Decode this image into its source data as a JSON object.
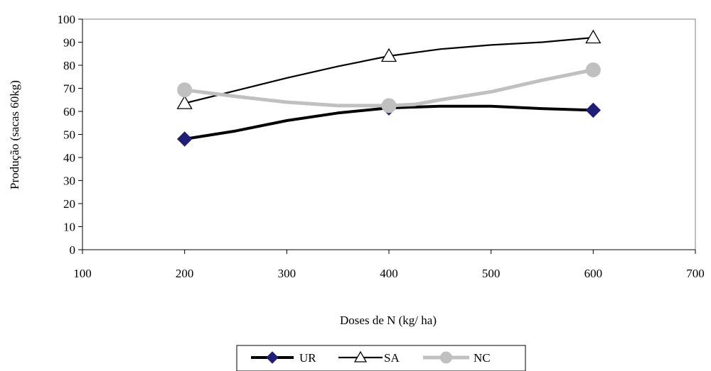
{
  "chart_data": {
    "type": "line",
    "title": "",
    "xlabel": "Doses de N (kg/ ha)",
    "ylabel": "Produção (sacas 60kg)",
    "xlim": [
      100,
      700
    ],
    "ylim": [
      0,
      100
    ],
    "xticks": [
      100,
      200,
      300,
      400,
      500,
      600,
      700
    ],
    "yticks": [
      0,
      10,
      20,
      30,
      40,
      50,
      60,
      70,
      80,
      90,
      100
    ],
    "grid": false,
    "legend_position": "bottom",
    "series": [
      {
        "name": "UR",
        "color": "#000000",
        "marker": "diamond",
        "marker_color": "#1f1f7a",
        "points": [
          [
            200,
            48
          ],
          [
            400,
            61.5
          ],
          [
            600,
            60.5
          ]
        ],
        "curve": [
          [
            200,
            48
          ],
          [
            250,
            51.5
          ],
          [
            300,
            56
          ],
          [
            350,
            59.3
          ],
          [
            400,
            61.5
          ],
          [
            450,
            62.2
          ],
          [
            500,
            62.2
          ],
          [
            550,
            61.2
          ],
          [
            600,
            60.5
          ]
        ]
      },
      {
        "name": "SA",
        "color": "#000000",
        "marker": "triangle",
        "marker_color": "#ffffff",
        "points": [
          [
            200,
            63.5
          ],
          [
            400,
            84
          ],
          [
            600,
            92
          ]
        ],
        "curve": [
          [
            200,
            63.5
          ],
          [
            250,
            69
          ],
          [
            300,
            74.5
          ],
          [
            350,
            79.5
          ],
          [
            400,
            84
          ],
          [
            450,
            87
          ],
          [
            500,
            88.8
          ],
          [
            550,
            90
          ],
          [
            600,
            92
          ]
        ]
      },
      {
        "name": "NC",
        "color": "#c0c0c0",
        "marker": "circle",
        "marker_color": "#c0c0c0",
        "points": [
          [
            200,
            69.3
          ],
          [
            400,
            62.5
          ],
          [
            600,
            78
          ]
        ],
        "curve": [
          [
            200,
            69.3
          ],
          [
            250,
            66.5
          ],
          [
            300,
            64
          ],
          [
            350,
            62.5
          ],
          [
            400,
            62.5
          ],
          [
            425,
            63
          ],
          [
            450,
            65
          ],
          [
            500,
            68.5
          ],
          [
            550,
            73.5
          ],
          [
            600,
            78
          ]
        ]
      }
    ]
  }
}
